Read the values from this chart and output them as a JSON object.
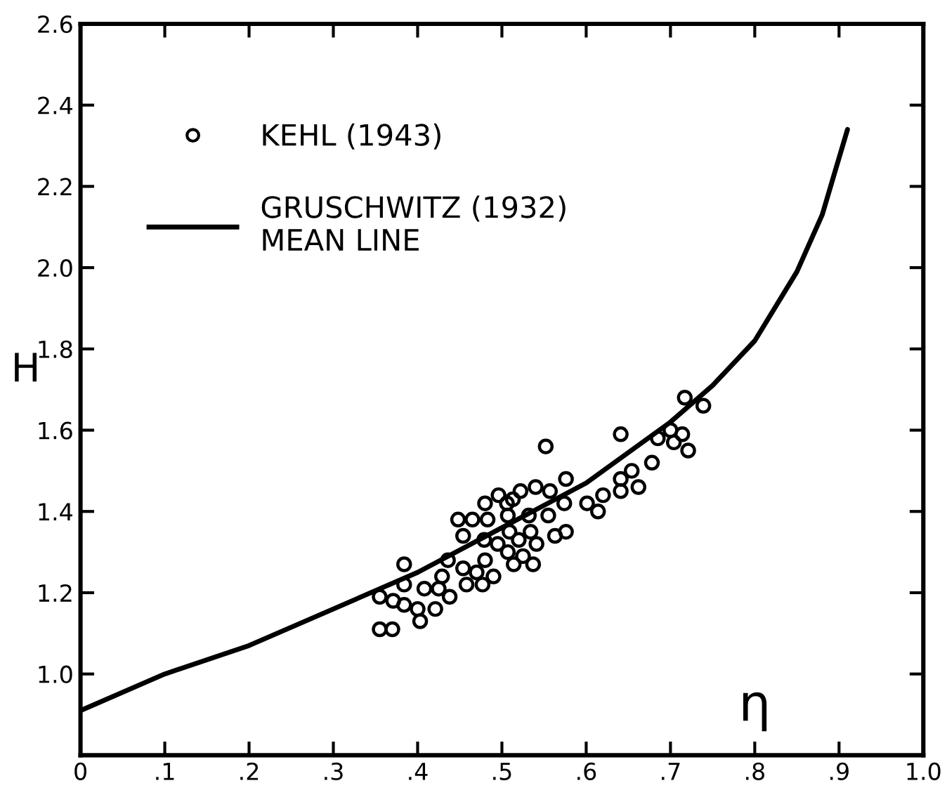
{
  "chart_data": {
    "type": "scatter",
    "xlabel": "η",
    "ylabel": "H",
    "xlim": [
      0,
      1.0
    ],
    "ylim": [
      0.8,
      2.6
    ],
    "xticks": [
      {
        "value": 0,
        "label": "0"
      },
      {
        "value": 0.1,
        "label": ".1"
      },
      {
        "value": 0.2,
        "label": ".2"
      },
      {
        "value": 0.3,
        "label": ".3"
      },
      {
        "value": 0.4,
        "label": ".4"
      },
      {
        "value": 0.5,
        "label": ".5"
      },
      {
        "value": 0.6,
        "label": ".6"
      },
      {
        "value": 0.7,
        "label": ".7"
      },
      {
        "value": 0.8,
        "label": ".8"
      },
      {
        "value": 0.9,
        "label": ".9"
      },
      {
        "value": 1.0,
        "label": "1.0"
      }
    ],
    "yticks": [
      {
        "value": 1.0,
        "label": "1.0"
      },
      {
        "value": 1.2,
        "label": "1.2"
      },
      {
        "value": 1.4,
        "label": "1.4"
      },
      {
        "value": 1.6,
        "label": "1.6"
      },
      {
        "value": 1.8,
        "label": "1.8"
      },
      {
        "value": 2.0,
        "label": "2.0"
      },
      {
        "value": 2.2,
        "label": "2.2"
      },
      {
        "value": 2.4,
        "label": "2.4"
      },
      {
        "value": 2.6,
        "label": "2.6"
      }
    ],
    "grid": false,
    "legend": "top left",
    "series": [
      {
        "name": "KEHL (1943)",
        "marker": "circle",
        "color": "#000000",
        "x": [
          0.355,
          0.355,
          0.37,
          0.384,
          0.371,
          0.384,
          0.384,
          0.403,
          0.4,
          0.408,
          0.421,
          0.425,
          0.429,
          0.438,
          0.436,
          0.448,
          0.454,
          0.454,
          0.458,
          0.465,
          0.47,
          0.477,
          0.48,
          0.483,
          0.479,
          0.48,
          0.49,
          0.496,
          0.495,
          0.506,
          0.507,
          0.509,
          0.507,
          0.514,
          0.513,
          0.522,
          0.52,
          0.525,
          0.532,
          0.534,
          0.537,
          0.54,
          0.541,
          0.552,
          0.555,
          0.557,
          0.563,
          0.574,
          0.576,
          0.576,
          0.601,
          0.614,
          0.62,
          0.641,
          0.641,
          0.641,
          0.654,
          0.662,
          0.678,
          0.685,
          0.7,
          0.704,
          0.714,
          0.717,
          0.721,
          0.739
        ],
        "values": [
          1.19,
          1.11,
          1.11,
          1.27,
          1.18,
          1.22,
          1.17,
          1.13,
          1.16,
          1.21,
          1.16,
          1.21,
          1.24,
          1.19,
          1.28,
          1.38,
          1.34,
          1.26,
          1.22,
          1.38,
          1.25,
          1.22,
          1.42,
          1.38,
          1.33,
          1.28,
          1.24,
          1.44,
          1.32,
          1.42,
          1.39,
          1.35,
          1.3,
          1.27,
          1.43,
          1.45,
          1.33,
          1.29,
          1.39,
          1.35,
          1.27,
          1.46,
          1.32,
          1.56,
          1.39,
          1.45,
          1.34,
          1.42,
          1.48,
          1.35,
          1.42,
          1.4,
          1.44,
          1.59,
          1.48,
          1.45,
          1.5,
          1.46,
          1.52,
          1.58,
          1.6,
          1.57,
          1.59,
          1.68,
          1.55,
          1.66
        ]
      },
      {
        "name": "GRUSCHWITZ (1932)\nMEAN LINE",
        "type": "line",
        "line_style": "solid",
        "marker": "none",
        "color": "#000000",
        "x": [
          0,
          0.1,
          0.2,
          0.3,
          0.4,
          0.5,
          0.6,
          0.7,
          0.75,
          0.8,
          0.85,
          0.88,
          0.89,
          0.91
        ],
        "values": [
          0.91,
          1.0,
          1.07,
          1.16,
          1.25,
          1.36,
          1.47,
          1.62,
          1.71,
          1.82,
          1.99,
          2.13,
          2.2,
          2.34
        ]
      }
    ]
  }
}
